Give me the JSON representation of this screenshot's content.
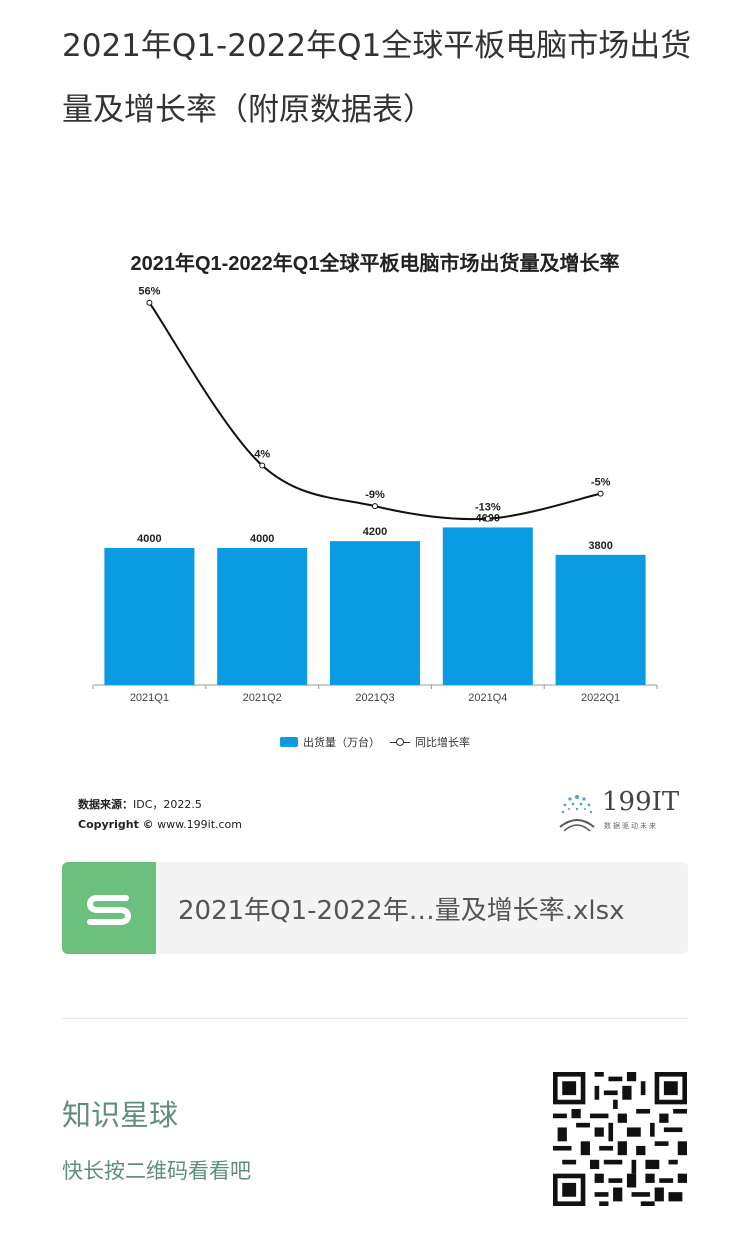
{
  "article": {
    "title": "2021年Q1-2022年Q1全球平板电脑市场出货量及增长率（附原数据表）"
  },
  "figure": {
    "legend": {
      "bar_label": "出货量（万台）",
      "line_label": "同比增长率"
    },
    "source_label": "数据来源：",
    "source_value": "IDC，2022.5",
    "copyright_label": "Copyright ©",
    "copyright_value": "www.199it.com",
    "brand_name": "199IT",
    "brand_sub": "数据驱动未来"
  },
  "chart_data": {
    "type": "bar",
    "title": "2021年Q1-2022年Q1全球平板电脑市场出货量及增长率",
    "categories": [
      "2021Q1",
      "2021Q2",
      "2021Q3",
      "2021Q4",
      "2022Q1"
    ],
    "series": [
      {
        "name": "出货量（万台）",
        "type": "bar",
        "values": [
          4000,
          4000,
          4200,
          4600,
          3800
        ],
        "labels": [
          "4000",
          "4000",
          "4200",
          "4600",
          "3800"
        ],
        "color": "#0a9be3"
      },
      {
        "name": "同比增长率",
        "type": "line",
        "values": [
          56,
          4,
          -9,
          -13,
          -5
        ],
        "labels": [
          "56%",
          "4%",
          "-9%",
          "-13%",
          "-5%"
        ],
        "color": "#111111"
      }
    ],
    "legend_position": "bottom",
    "grid": false
  },
  "file_card": {
    "name": "2021年Q1-2022年…量及增长率.xlsx",
    "icon_color": "#6cc07e"
  },
  "knowledge": {
    "title": "知识星球",
    "subtitle": "快长按二维码看看吧"
  }
}
